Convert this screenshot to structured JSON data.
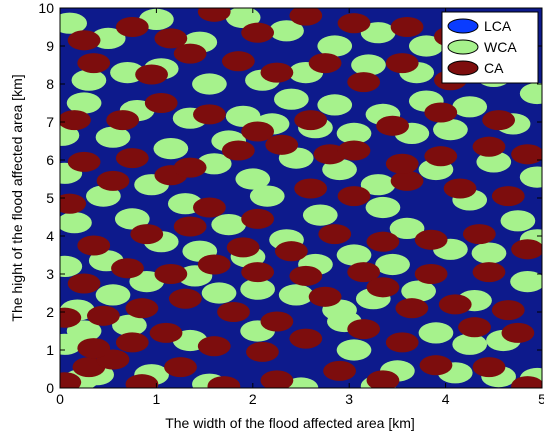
{
  "chart_data": {
    "type": "scatter",
    "xlabel": "The width of the flood affected area [km]",
    "ylabel": "The hight of the flood affected area [km]",
    "xlim": [
      0,
      5
    ],
    "ylim": [
      0,
      10
    ],
    "xticks": [
      "0",
      "1",
      "2",
      "3",
      "4",
      "5"
    ],
    "yticks": [
      "0",
      "1",
      "2",
      "3",
      "4",
      "5",
      "6",
      "7",
      "8",
      "9",
      "10"
    ],
    "grid": false,
    "legend_position": "top-right",
    "colors": {
      "background": "#0d1a8c",
      "LCA": "#0a3cff",
      "WCA": "#a6f28c",
      "CA": "#7d0d0d"
    },
    "legend": [
      {
        "name": "LCA",
        "key": "LCA"
      },
      {
        "name": "WCA",
        "key": "WCA"
      },
      {
        "name": "CA",
        "key": "CA"
      }
    ],
    "series": [
      {
        "name": "WCA",
        "radius_km": 0.18,
        "points": [
          [
            0.22,
            0.22
          ],
          [
            0.38,
            0.35
          ],
          [
            0.95,
            0.35
          ],
          [
            1.55,
            0.1
          ],
          [
            2.5,
            0.0
          ],
          [
            3.3,
            0.05
          ],
          [
            3.5,
            0.45
          ],
          [
            4.1,
            0.4
          ],
          [
            4.55,
            0.3
          ],
          [
            4.95,
            0.25
          ],
          [
            0.05,
            1.15
          ],
          [
            0.25,
            1.5
          ],
          [
            0.72,
            1.65
          ],
          [
            1.35,
            1.25
          ],
          [
            2.05,
            1.5
          ],
          [
            2.95,
            1.75
          ],
          [
            3.05,
            1.0
          ],
          [
            3.9,
            1.45
          ],
          [
            4.25,
            1.15
          ],
          [
            4.6,
            1.25
          ],
          [
            0.18,
            2.05
          ],
          [
            0.55,
            2.45
          ],
          [
            0.9,
            2.8
          ],
          [
            1.4,
            2.95
          ],
          [
            1.65,
            2.5
          ],
          [
            2.05,
            2.6
          ],
          [
            2.45,
            2.45
          ],
          [
            2.9,
            2.05
          ],
          [
            3.25,
            2.35
          ],
          [
            3.72,
            2.55
          ],
          [
            4.3,
            2.3
          ],
          [
            4.85,
            2.8
          ],
          [
            0.05,
            3.2
          ],
          [
            0.48,
            3.35
          ],
          [
            1.05,
            3.85
          ],
          [
            1.45,
            3.6
          ],
          [
            1.95,
            3.45
          ],
          [
            2.35,
            3.9
          ],
          [
            2.65,
            3.25
          ],
          [
            3.05,
            3.5
          ],
          [
            3.45,
            3.25
          ],
          [
            4.05,
            3.65
          ],
          [
            4.45,
            3.55
          ],
          [
            4.95,
            3.9
          ],
          [
            0.15,
            4.35
          ],
          [
            0.75,
            4.45
          ],
          [
            1.3,
            4.85
          ],
          [
            1.75,
            4.3
          ],
          [
            2.15,
            5.05
          ],
          [
            2.7,
            4.55
          ],
          [
            3.35,
            4.75
          ],
          [
            3.6,
            4.2
          ],
          [
            4.25,
            4.95
          ],
          [
            4.75,
            4.4
          ],
          [
            0.05,
            5.65
          ],
          [
            0.45,
            5.05
          ],
          [
            0.95,
            5.35
          ],
          [
            1.6,
            5.9
          ],
          [
            2.0,
            5.5
          ],
          [
            2.45,
            6.05
          ],
          [
            2.9,
            5.75
          ],
          [
            3.3,
            5.35
          ],
          [
            3.9,
            5.75
          ],
          [
            4.5,
            5.95
          ],
          [
            4.95,
            5.55
          ],
          [
            0.02,
            6.65
          ],
          [
            0.55,
            6.6
          ],
          [
            1.15,
            6.3
          ],
          [
            1.75,
            6.5
          ],
          [
            2.2,
            6.95
          ],
          [
            2.65,
            6.85
          ],
          [
            3.05,
            6.7
          ],
          [
            3.65,
            6.7
          ],
          [
            4.05,
            6.8
          ],
          [
            4.7,
            6.95
          ],
          [
            0.25,
            7.5
          ],
          [
            0.8,
            7.3
          ],
          [
            1.35,
            7.1
          ],
          [
            1.9,
            7.15
          ],
          [
            2.4,
            7.6
          ],
          [
            2.85,
            7.45
          ],
          [
            3.35,
            7.2
          ],
          [
            3.8,
            7.55
          ],
          [
            4.25,
            7.4
          ],
          [
            4.95,
            7.75
          ],
          [
            0.3,
            8.1
          ],
          [
            0.7,
            8.3
          ],
          [
            1.05,
            8.4
          ],
          [
            1.55,
            8.0
          ],
          [
            2.1,
            8.1
          ],
          [
            2.55,
            8.3
          ],
          [
            3.2,
            8.5
          ],
          [
            3.7,
            8.3
          ],
          [
            4.5,
            8.2
          ],
          [
            0.1,
            9.6
          ],
          [
            0.5,
            9.2
          ],
          [
            1.0,
            9.7
          ],
          [
            1.45,
            9.1
          ],
          [
            1.9,
            9.75
          ],
          [
            2.35,
            9.4
          ],
          [
            2.85,
            9.0
          ],
          [
            3.3,
            9.35
          ],
          [
            3.8,
            9.0
          ],
          [
            4.2,
            9.6
          ],
          [
            4.6,
            9.0
          ]
        ]
      },
      {
        "name": "CA",
        "radius_km": 0.17,
        "points": [
          [
            0.05,
            0.15
          ],
          [
            0.3,
            0.55
          ],
          [
            0.55,
            0.75
          ],
          [
            0.85,
            0.1
          ],
          [
            1.25,
            0.55
          ],
          [
            1.7,
            0.05
          ],
          [
            2.25,
            0.2
          ],
          [
            2.9,
            0.45
          ],
          [
            3.35,
            0.2
          ],
          [
            3.9,
            0.6
          ],
          [
            4.45,
            0.55
          ],
          [
            4.85,
            0.05
          ],
          [
            0.35,
            1.05
          ],
          [
            0.75,
            1.2
          ],
          [
            1.1,
            1.45
          ],
          [
            1.6,
            1.1
          ],
          [
            2.1,
            0.95
          ],
          [
            2.55,
            1.3
          ],
          [
            3.15,
            1.55
          ],
          [
            3.55,
            1.2
          ],
          [
            4.3,
            1.6
          ],
          [
            4.75,
            1.45
          ],
          [
            0.05,
            1.85
          ],
          [
            0.45,
            1.9
          ],
          [
            0.85,
            2.1
          ],
          [
            1.3,
            2.35
          ],
          [
            1.8,
            2.0
          ],
          [
            2.25,
            1.75
          ],
          [
            2.75,
            2.4
          ],
          [
            3.35,
            2.65
          ],
          [
            3.65,
            2.1
          ],
          [
            4.1,
            2.2
          ],
          [
            4.65,
            2.05
          ],
          [
            0.25,
            2.75
          ],
          [
            0.7,
            3.15
          ],
          [
            1.15,
            3.0
          ],
          [
            1.6,
            3.25
          ],
          [
            2.05,
            3.05
          ],
          [
            2.55,
            2.95
          ],
          [
            3.15,
            3.05
          ],
          [
            3.85,
            3.0
          ],
          [
            4.45,
            3.05
          ],
          [
            0.35,
            3.75
          ],
          [
            0.9,
            4.05
          ],
          [
            1.35,
            4.25
          ],
          [
            1.9,
            3.7
          ],
          [
            2.4,
            3.6
          ],
          [
            2.85,
            4.05
          ],
          [
            3.35,
            3.85
          ],
          [
            3.85,
            3.9
          ],
          [
            4.35,
            4.05
          ],
          [
            4.85,
            3.65
          ],
          [
            0.1,
            4.85
          ],
          [
            0.55,
            5.45
          ],
          [
            1.15,
            5.6
          ],
          [
            1.55,
            4.75
          ],
          [
            2.05,
            4.45
          ],
          [
            2.6,
            5.25
          ],
          [
            3.05,
            5.05
          ],
          [
            3.6,
            5.45
          ],
          [
            4.15,
            5.25
          ],
          [
            4.65,
            5.05
          ],
          [
            0.25,
            5.95
          ],
          [
            0.75,
            6.05
          ],
          [
            1.35,
            5.8
          ],
          [
            1.85,
            6.25
          ],
          [
            2.3,
            6.4
          ],
          [
            2.8,
            6.15
          ],
          [
            3.05,
            6.25
          ],
          [
            3.55,
            5.9
          ],
          [
            3.95,
            6.1
          ],
          [
            4.45,
            6.35
          ],
          [
            4.85,
            6.15
          ],
          [
            0.15,
            7.05
          ],
          [
            0.65,
            7.05
          ],
          [
            1.05,
            7.5
          ],
          [
            1.55,
            7.2
          ],
          [
            2.05,
            6.75
          ],
          [
            2.6,
            7.05
          ],
          [
            3.45,
            6.9
          ],
          [
            3.95,
            7.25
          ],
          [
            4.55,
            7.05
          ],
          [
            0.35,
            8.55
          ],
          [
            0.95,
            8.25
          ],
          [
            1.35,
            8.8
          ],
          [
            1.85,
            8.6
          ],
          [
            2.25,
            8.3
          ],
          [
            2.75,
            8.55
          ],
          [
            3.15,
            8.05
          ],
          [
            3.55,
            8.55
          ],
          [
            4.05,
            8.1
          ],
          [
            4.75,
            8.5
          ],
          [
            0.25,
            9.15
          ],
          [
            0.75,
            9.5
          ],
          [
            1.15,
            9.2
          ],
          [
            1.6,
            9.9
          ],
          [
            2.05,
            9.35
          ],
          [
            2.55,
            9.8
          ],
          [
            3.05,
            9.6
          ],
          [
            3.6,
            9.5
          ],
          [
            4.05,
            9.25
          ],
          [
            4.5,
            9.45
          ]
        ]
      }
    ]
  }
}
